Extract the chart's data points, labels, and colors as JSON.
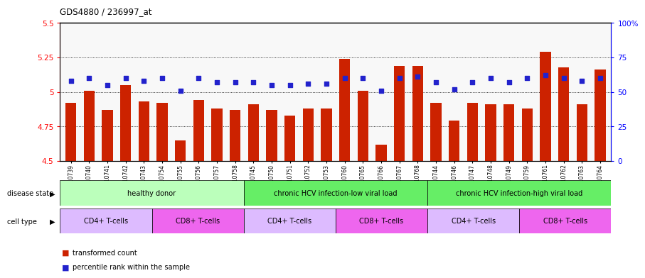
{
  "title": "GDS4880 / 236997_at",
  "samples": [
    "GSM1210739",
    "GSM1210740",
    "GSM1210741",
    "GSM1210742",
    "GSM1210743",
    "GSM1210754",
    "GSM1210755",
    "GSM1210756",
    "GSM1210757",
    "GSM1210758",
    "GSM1210745",
    "GSM1210750",
    "GSM1210751",
    "GSM1210752",
    "GSM1210753",
    "GSM1210760",
    "GSM1210765",
    "GSM1210766",
    "GSM1210767",
    "GSM1210768",
    "GSM1210744",
    "GSM1210746",
    "GSM1210747",
    "GSM1210748",
    "GSM1210749",
    "GSM1210759",
    "GSM1210761",
    "GSM1210762",
    "GSM1210763",
    "GSM1210764"
  ],
  "red_values": [
    4.92,
    5.01,
    4.87,
    5.05,
    4.93,
    4.92,
    4.65,
    4.94,
    4.88,
    4.87,
    4.91,
    4.87,
    4.83,
    4.88,
    4.88,
    5.24,
    5.01,
    4.62,
    5.19,
    5.19,
    4.92,
    4.79,
    4.92,
    4.91,
    4.91,
    4.88,
    5.29,
    5.18,
    4.91,
    5.16
  ],
  "blue_values": [
    58,
    60,
    55,
    60,
    58,
    60,
    51,
    60,
    57,
    57,
    57,
    55,
    55,
    56,
    56,
    60,
    60,
    51,
    60,
    61,
    57,
    52,
    57,
    60,
    57,
    60,
    62,
    60,
    58,
    60
  ],
  "ylim_left": [
    4.5,
    5.5
  ],
  "ylim_right": [
    0,
    100
  ],
  "yticks_left": [
    4.5,
    4.75,
    5.0,
    5.25,
    5.5
  ],
  "yticks_right": [
    0,
    25,
    50,
    75,
    100
  ],
  "ytick_labels_left": [
    "4.5",
    "4.75",
    "5",
    "5.25",
    "5.5"
  ],
  "ytick_labels_right": [
    "0",
    "25",
    "50",
    "75",
    "100%"
  ],
  "bar_color": "#cc2200",
  "dot_color": "#2222cc",
  "plot_bg_color": "#f8f8f8",
  "disease_state_regions": [
    {
      "label": "healthy donor",
      "start": 0,
      "end": 10,
      "color": "#bbffbb"
    },
    {
      "label": "chronic HCV infection-low viral load",
      "start": 10,
      "end": 20,
      "color": "#66ee66"
    },
    {
      "label": "chronic HCV infection-high viral load",
      "start": 20,
      "end": 30,
      "color": "#66ee66"
    }
  ],
  "cell_type_regions": [
    {
      "label": "CD4+ T-cells",
      "start": 0,
      "end": 5,
      "color": "#ddbbff"
    },
    {
      "label": "CD8+ T-cells",
      "start": 5,
      "end": 10,
      "color": "#ee66ee"
    },
    {
      "label": "CD4+ T-cells",
      "start": 10,
      "end": 15,
      "color": "#ddbbff"
    },
    {
      "label": "CD8+ T-cells",
      "start": 15,
      "end": 20,
      "color": "#ee66ee"
    },
    {
      "label": "CD4+ T-cells",
      "start": 20,
      "end": 25,
      "color": "#ddbbff"
    },
    {
      "label": "CD8+ T-cells",
      "start": 25,
      "end": 30,
      "color": "#ee66ee"
    }
  ],
  "gridline_values": [
    4.75,
    5.0,
    5.25
  ],
  "bar_width": 0.6,
  "base_value": 4.5,
  "n_samples": 30
}
